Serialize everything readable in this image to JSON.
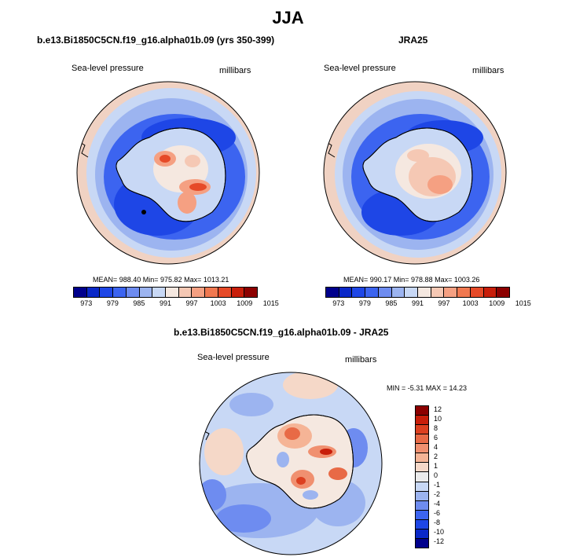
{
  "figure": {
    "title": "JJA"
  },
  "panels": {
    "model": {
      "title": "b.e13.Bi1850C5CN.f19_g16.alpha01b.09 (yrs 350-399)",
      "variable": "Sea-level pressure",
      "units": "millibars",
      "stats": "MEAN= 988.40  Min= 975.82  Max= 1013.21"
    },
    "obs": {
      "title": "JRA25",
      "variable": "Sea-level pressure",
      "units": "millibars",
      "stats": "MEAN= 990.17  Min= 978.88  Max= 1003.26"
    },
    "diff": {
      "title": "b.e13.Bi1850C5CN.f19_g16.alpha01b.09 - JRA25",
      "variable": "Sea-level pressure",
      "units": "millibars",
      "stats": "MIN =  -5.31 MAX =  14.23"
    }
  },
  "colorbar_abs": {
    "colors": [
      "#00008c",
      "#0a28c8",
      "#1e46e6",
      "#3c64f0",
      "#6e8cf0",
      "#9cb4f0",
      "#c8d8f5",
      "#f5e8e0",
      "#f5c8b4",
      "#f5a082",
      "#f07850",
      "#e64a28",
      "#c81e0a",
      "#8c0000"
    ],
    "labels": [
      "973",
      "979",
      "985",
      "991",
      "997",
      "1003",
      "1009",
      "1015"
    ]
  },
  "colorbar_diff": {
    "colors": [
      "#00008c",
      "#0a28c8",
      "#1e46e6",
      "#3c64f0",
      "#6e8cf0",
      "#9cb4f0",
      "#c8d8f5",
      "#ebebeb",
      "#f5d8c8",
      "#f5b496",
      "#f09070",
      "#e86a46",
      "#dc4020",
      "#c81e0a",
      "#8c0000"
    ],
    "labels": [
      "12",
      "10",
      "8",
      "6",
      "4",
      "2",
      "1",
      "0",
      "-1",
      "-2",
      "-4",
      "-6",
      "-8",
      "-10",
      "-12"
    ]
  },
  "maps": {
    "model": {
      "background": "#a8c4f0",
      "ring_outer": "#f0d2c3",
      "ring": "#c8d8f5",
      "ocean_band": "#3c64f0",
      "interior": "#f5c8b4"
    },
    "obs": {
      "background": "#a8c4f0",
      "ring_outer": "#f0d2c3",
      "ring": "#c8d8f5",
      "ocean_band": "#3c64f0",
      "interior": "#f5c8b4"
    },
    "diff": {
      "background": "#c8d8f5",
      "ring_outer": "#f5d8c8",
      "ring": "#9cb4f0",
      "ocean_band": "#6e8cf0",
      "interior": "#f5b496"
    }
  }
}
